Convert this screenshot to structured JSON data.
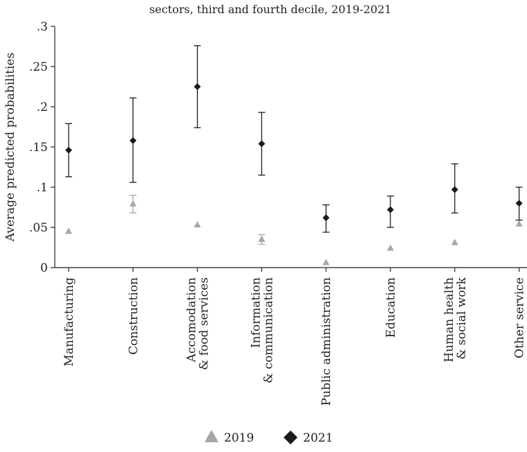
{
  "chart_data": {
    "type": "scatter",
    "title": "sectors, third and fourth decile, 2019-2021",
    "ylabel": "Average predicted probabilities",
    "xlabel": "",
    "ylim": [
      0,
      0.3
    ],
    "yticks": [
      {
        "value": 0,
        "label": "0"
      },
      {
        "value": 0.05,
        "label": ".05"
      },
      {
        "value": 0.1,
        "label": ".1"
      },
      {
        "value": 0.15,
        "label": ".15"
      },
      {
        "value": 0.2,
        "label": ".2"
      },
      {
        "value": 0.25,
        "label": ".25"
      },
      {
        "value": 0.3,
        "label": ".3"
      }
    ],
    "categories": [
      [
        "Manufacturing"
      ],
      [
        "Construction"
      ],
      [
        "Accomodation",
        "& food services"
      ],
      [
        "Information",
        "& communication"
      ],
      [
        "Public administration"
      ],
      [
        "Education"
      ],
      [
        "Human health",
        "& social work"
      ],
      [
        "Other service"
      ]
    ],
    "series": [
      {
        "name": "2019",
        "marker": "triangle",
        "color": "#a6a6a6",
        "values": [
          0.045,
          0.079,
          0.053,
          0.035,
          0.006,
          0.024,
          0.031,
          0.054
        ],
        "lower": [
          0.045,
          0.068,
          0.053,
          0.029,
          0.006,
          0.024,
          0.031,
          0.054
        ],
        "upper": [
          0.045,
          0.09,
          0.053,
          0.041,
          0.006,
          0.024,
          0.031,
          0.054
        ]
      },
      {
        "name": "2021",
        "marker": "diamond",
        "color": "#1a1a1a",
        "values": [
          0.146,
          0.158,
          0.225,
          0.154,
          0.062,
          0.072,
          0.097,
          0.08
        ],
        "lower": [
          0.113,
          0.106,
          0.174,
          0.115,
          0.044,
          0.05,
          0.068,
          0.059
        ],
        "upper": [
          0.179,
          0.211,
          0.276,
          0.193,
          0.078,
          0.089,
          0.129,
          0.1
        ]
      }
    ],
    "legend": "bottom-center",
    "grid": false
  }
}
